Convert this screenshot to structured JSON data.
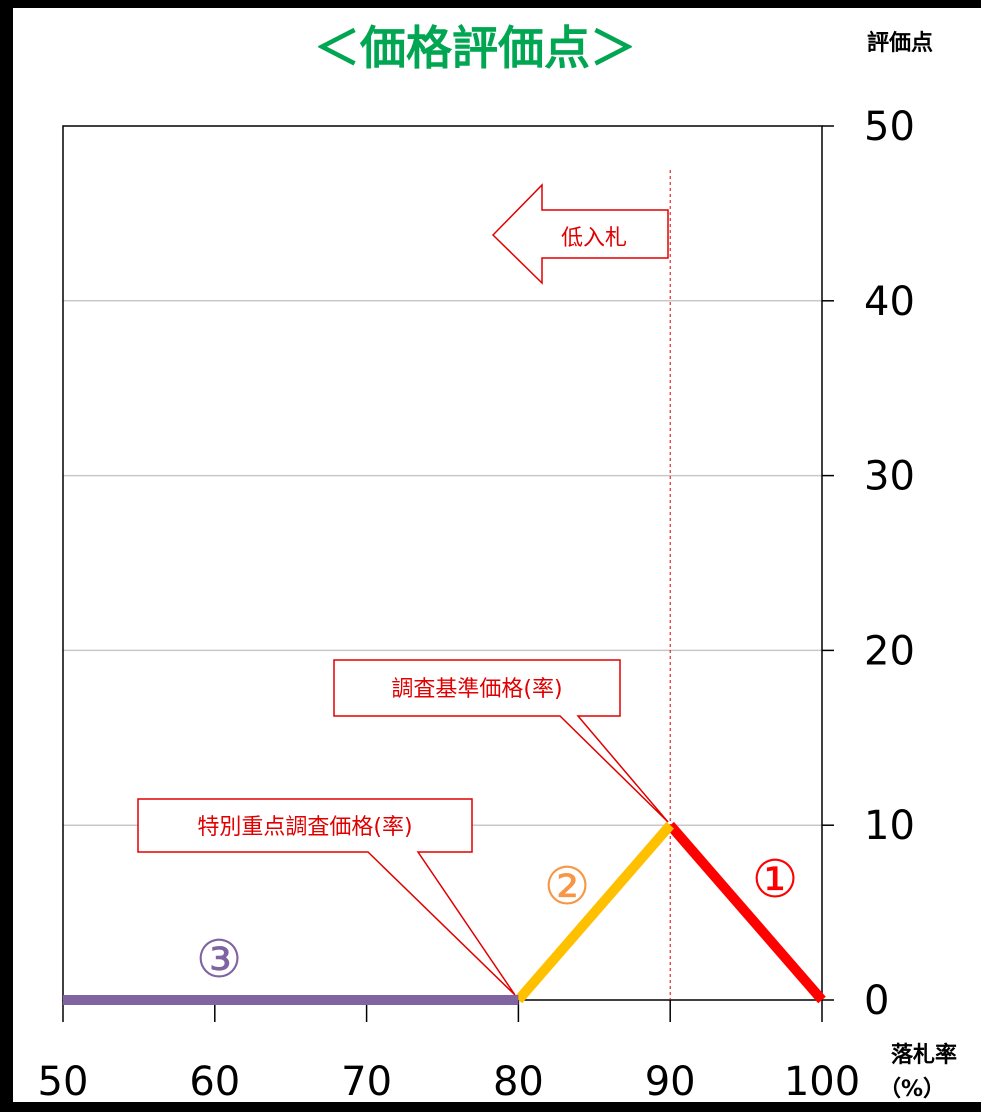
{
  "chart_data": {
    "type": "line",
    "title": "＜価格評価点＞",
    "ylabel": "評価点",
    "xlabel": "落札率",
    "xlabel_unit": "（%）",
    "xlim": [
      50,
      100
    ],
    "ylim": [
      0,
      50
    ],
    "x_ticks": [
      "50",
      "60",
      "70",
      "80",
      "90",
      "100"
    ],
    "y_ticks": [
      "0",
      "10",
      "20",
      "30",
      "40",
      "50"
    ],
    "grid": true,
    "series": [
      {
        "label": "①",
        "color": "#ff0000",
        "x": [
          90,
          100
        ],
        "y": [
          10,
          0
        ]
      },
      {
        "label": "②",
        "color": "#ffc000",
        "x": [
          80,
          90
        ],
        "y": [
          0,
          10
        ]
      },
      {
        "label": "③",
        "color": "#8064a2",
        "x": [
          50,
          80
        ],
        "y": [
          0,
          0
        ]
      }
    ],
    "label_colors": {
      "①": "#ff0000",
      "②": "#f79646",
      "③": "#8064a2"
    },
    "reference_line": {
      "x": 90
    },
    "annotations": {
      "arrow": "低入札",
      "survey_price": "調査基準価格(率)",
      "special_price": "特別重点調査価格(率)"
    }
  }
}
